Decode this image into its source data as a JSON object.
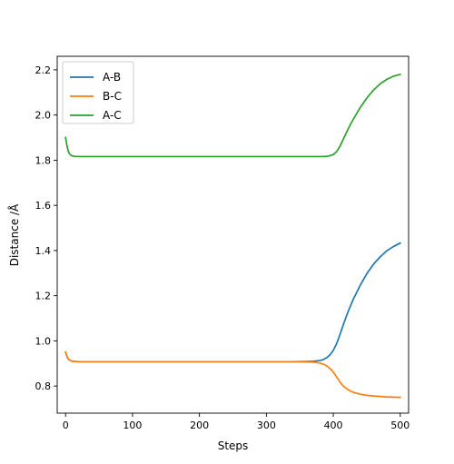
{
  "chart_data": {
    "type": "line",
    "title": "",
    "xlabel": "Steps",
    "ylabel": "Distance /Å",
    "xlim": [
      -12.5,
      512.5
    ],
    "ylim": [
      0.68,
      2.26
    ],
    "xticks": [
      0,
      100,
      200,
      300,
      400,
      500
    ],
    "yticks": [
      0.8,
      1.0,
      1.2,
      1.4,
      1.6,
      1.8,
      2.0,
      2.2
    ],
    "ytick_labels": [
      "0.8",
      "1.0",
      "1.2",
      "1.4",
      "1.6",
      "1.8",
      "2.0",
      "2.2"
    ],
    "grid": false,
    "legend_position": "top-left",
    "series": [
      {
        "name": "A-B",
        "color": "#1f77b4",
        "x": [
          0,
          2,
          4,
          6,
          8,
          10,
          14,
          20,
          30,
          50,
          100,
          200,
          300,
          340,
          360,
          370,
          380,
          385,
          390,
          395,
          400,
          405,
          410,
          415,
          420,
          425,
          430,
          440,
          450,
          460,
          470,
          480,
          490,
          500
        ],
        "y": [
          0.95,
          0.932,
          0.92,
          0.915,
          0.912,
          0.91,
          0.909,
          0.908,
          0.908,
          0.908,
          0.908,
          0.908,
          0.908,
          0.908,
          0.909,
          0.91,
          0.913,
          0.917,
          0.925,
          0.938,
          0.958,
          0.988,
          1.028,
          1.072,
          1.113,
          1.15,
          1.185,
          1.245,
          1.297,
          1.339,
          1.372,
          1.399,
          1.418,
          1.433
        ]
      },
      {
        "name": "B-C",
        "color": "#ff7f0e",
        "x": [
          0,
          2,
          4,
          6,
          8,
          10,
          14,
          20,
          30,
          50,
          100,
          200,
          300,
          340,
          360,
          370,
          380,
          385,
          390,
          395,
          400,
          405,
          410,
          415,
          420,
          425,
          430,
          440,
          450,
          460,
          470,
          480,
          490,
          500
        ],
        "y": [
          0.95,
          0.932,
          0.92,
          0.915,
          0.912,
          0.91,
          0.909,
          0.908,
          0.908,
          0.908,
          0.908,
          0.908,
          0.908,
          0.908,
          0.907,
          0.906,
          0.902,
          0.897,
          0.89,
          0.878,
          0.862,
          0.84,
          0.818,
          0.8,
          0.788,
          0.779,
          0.772,
          0.764,
          0.759,
          0.756,
          0.754,
          0.752,
          0.751,
          0.75
        ]
      },
      {
        "name": "A-C",
        "color": "#2ca02c",
        "x": [
          0,
          2,
          4,
          6,
          8,
          10,
          14,
          20,
          30,
          50,
          100,
          200,
          300,
          360,
          380,
          390,
          395,
          400,
          405,
          410,
          415,
          420,
          425,
          430,
          440,
          450,
          460,
          470,
          480,
          490,
          500
        ],
        "y": [
          1.9,
          1.865,
          1.84,
          1.828,
          1.822,
          1.819,
          1.817,
          1.816,
          1.816,
          1.816,
          1.816,
          1.816,
          1.816,
          1.816,
          1.816,
          1.817,
          1.82,
          1.825,
          1.838,
          1.862,
          1.893,
          1.925,
          1.955,
          1.982,
          2.032,
          2.075,
          2.11,
          2.138,
          2.158,
          2.172,
          2.18
        ]
      }
    ]
  }
}
